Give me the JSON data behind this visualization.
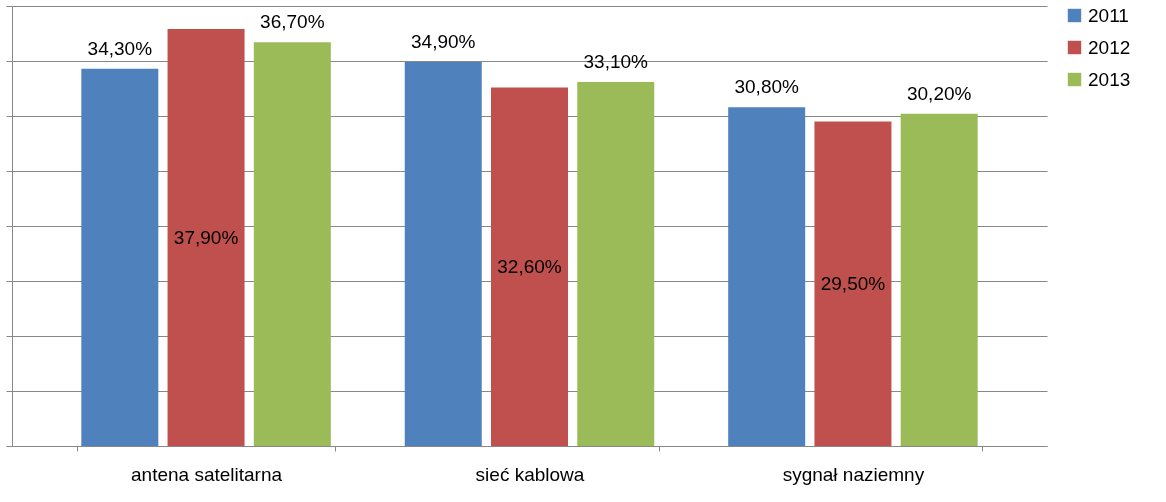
{
  "chart_data": {
    "type": "bar",
    "categories": [
      "antena satelitarna",
      "sieć kablowa",
      "sygnał naziemny"
    ],
    "series": [
      {
        "name": "2011",
        "color": "#4f81bd",
        "values": [
          34.3,
          34.9,
          30.8
        ],
        "value_labels": [
          "34,30%",
          "34,90%",
          "30,80%"
        ]
      },
      {
        "name": "2012",
        "color": "#c0504d",
        "values": [
          37.9,
          32.6,
          29.5
        ],
        "value_labels": [
          "37,90%",
          "32,60%",
          "29,50%"
        ]
      },
      {
        "name": "2013",
        "color": "#9bbb59",
        "values": [
          36.7,
          33.1,
          30.2
        ],
        "value_labels": [
          "36,70%",
          "33,10%",
          "30,20%"
        ]
      }
    ],
    "ylim": [
      0,
      40
    ],
    "yticks": [
      0,
      5,
      10,
      15,
      20,
      25,
      30,
      35,
      40
    ],
    "tick_labels": "x",
    "grid": "y",
    "legend": "right"
  }
}
